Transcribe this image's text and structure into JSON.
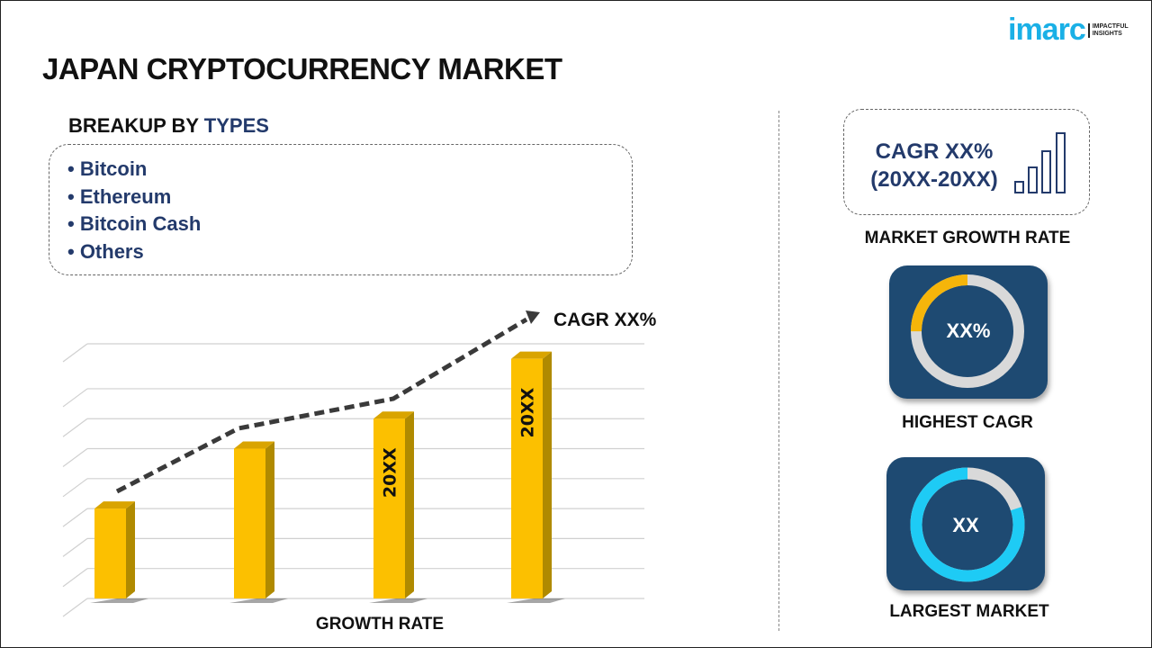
{
  "header": {
    "title": "JAPAN CRYPTOCURRENCY MARKET",
    "logo_text": "imarc",
    "logo_tagline": [
      "IMPACTFUL",
      "INSIGHTS"
    ]
  },
  "breakup": {
    "prefix": "BREAKUP BY ",
    "highlight": "TYPES",
    "items": [
      "• Bitcoin",
      "• Ethereum",
      "• Bitcoin Cash",
      "• Others"
    ]
  },
  "growth_rate": {
    "cagr_line1": "CAGR XX%",
    "cagr_line2": "(20XX-20XX)",
    "label": "MARKET GROWTH RATE"
  },
  "highest_cagr": {
    "value": "XX%",
    "label": "HIGHEST CAGR",
    "fill_fraction": 0.25,
    "fill_color": "#f5b50a",
    "track_color": "#d9d9d9"
  },
  "largest_market": {
    "value": "XX",
    "label": "LARGEST MARKET",
    "fill_fraction": 0.8,
    "fill_color": "#1ecbf5",
    "track_color": "#d9d9d9"
  },
  "colors": {
    "accent": "#233a6b",
    "bar": "#fcc000",
    "bar_side": "#b08a00",
    "card": "#1e4a72"
  },
  "chart_data": {
    "type": "bar",
    "categories": [
      "",
      "",
      "",
      ""
    ],
    "values": [
      3,
      5,
      6,
      8
    ],
    "bar_labels": [
      "",
      "",
      "20XX",
      "20XX"
    ],
    "trend_label": "CAGR XX%",
    "xlabel": "GROWTH RATE",
    "ylabel": "",
    "ylim": [
      0,
      8.5
    ],
    "grid": true
  }
}
